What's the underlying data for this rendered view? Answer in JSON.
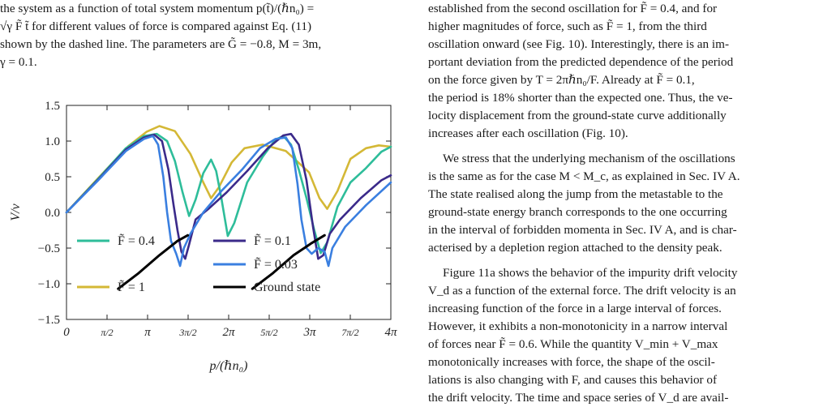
{
  "left_column": {
    "caption_lines": [
      "the system as a function of total system momentum p(t̃)/(ℏn₀) =",
      "√γ F̃ t̃  for different values of force is compared against Eq. (11)",
      "shown by the dashed line. The parameters are G̃ = −0.8, M = 3m,",
      "γ = 0.1."
    ]
  },
  "right_column": {
    "para1": [
      "established from the second oscillation for F̃ = 0.4, and for",
      "higher magnitudes of force, such as F̃ = 1, from the third",
      "oscillation onward (see Fig. 10). Interestingly, there is an im-",
      "portant deviation from the predicted dependence of the period",
      "on the force given by T = 2πℏn₀/F. Already at F̃ = 0.1,",
      "the period is 18% shorter than the expected one. Thus, the ve-",
      "locity displacement from the ground-state curve additionally",
      "increases after each oscillation (Fig. 10)."
    ],
    "para2": [
      "We stress that the underlying mechanism of the oscillations",
      "is the same as for the case M < M_c, as explained in Sec. IV A.",
      "The state realised along the jump from the metastable to the",
      "ground-state energy branch corresponds to the one occurring",
      "in the interval of forbidden momenta in Sec. IV A, and is char-",
      "acterised by a depletion region attached to the density peak."
    ],
    "para3": [
      "Figure 11a shows the behavior of the impurity drift velocity",
      "V_d as a function of the external force. The drift velocity is an",
      "increasing function of the force in a large interval of forces.",
      "However, it exhibits a non-monotonicity in a narrow interval",
      "of forces near F̃ = 0.6. While the quantity V_min + V_max",
      "monotonically increases with force, the shape of the oscil-",
      "lations is also changing with F, and causes this behavior of",
      "the drift velocity. The time and space series of V_d are avail-"
    ]
  },
  "chart_data": {
    "type": "line",
    "xlabel": "p/(ℏn₀)",
    "ylabel": "V/v",
    "xlim": [
      0,
      12.566
    ],
    "ylim": [
      -1.5,
      1.5
    ],
    "x_tick_labels": [
      "0",
      "π/2",
      "π",
      "3π/2",
      "2π",
      "5π/2",
      "3π",
      "7π/2",
      "4π"
    ],
    "y_tick_labels": [
      "−1.5",
      "−1.0",
      "−0.5",
      "0.0",
      "0.5",
      "1.0",
      "1.5"
    ],
    "y_ticks": [
      -1.5,
      -1.0,
      -0.5,
      0.0,
      0.5,
      1.0,
      1.5
    ],
    "legend": [
      "F̃ = 0.4",
      "F̃ = 0.1",
      "F̃ = 0.03",
      "F̃ = 1",
      "Ground state"
    ],
    "series": [
      {
        "name": "F̃ = 1",
        "color": "#d4b836",
        "points": [
          [
            0,
            0
          ],
          [
            1.2,
            0.47
          ],
          [
            2.4,
            0.93
          ],
          [
            3.1,
            1.13
          ],
          [
            3.6,
            1.21
          ],
          [
            4.2,
            1.14
          ],
          [
            4.8,
            0.82
          ],
          [
            5.3,
            0.42
          ],
          [
            5.6,
            0.2
          ],
          [
            5.9,
            0.35
          ],
          [
            6.4,
            0.7
          ],
          [
            6.9,
            0.9
          ],
          [
            7.6,
            0.95
          ],
          [
            8.5,
            0.86
          ],
          [
            9.4,
            0.56
          ],
          [
            9.8,
            0.2
          ],
          [
            10.1,
            0.05
          ],
          [
            10.5,
            0.3
          ],
          [
            11.0,
            0.75
          ],
          [
            11.6,
            0.9
          ],
          [
            12.1,
            0.94
          ],
          [
            12.566,
            0.92
          ]
        ]
      },
      {
        "name": "F̃ = 0.4",
        "color": "#2ebd9a",
        "points": [
          [
            0,
            0
          ],
          [
            1.2,
            0.46
          ],
          [
            2.3,
            0.9
          ],
          [
            3.0,
            1.07
          ],
          [
            3.5,
            1.1
          ],
          [
            3.9,
            1.0
          ],
          [
            4.2,
            0.72
          ],
          [
            4.5,
            0.28
          ],
          [
            4.75,
            -0.05
          ],
          [
            5.0,
            0.18
          ],
          [
            5.3,
            0.55
          ],
          [
            5.6,
            0.74
          ],
          [
            5.8,
            0.58
          ],
          [
            6.0,
            0.2
          ],
          [
            6.25,
            -0.33
          ],
          [
            6.5,
            -0.15
          ],
          [
            7.0,
            0.42
          ],
          [
            7.6,
            0.78
          ],
          [
            8.1,
            1.02
          ],
          [
            8.4,
            1.07
          ],
          [
            8.7,
            0.95
          ],
          [
            9.0,
            0.6
          ],
          [
            9.3,
            0.2
          ],
          [
            9.6,
            -0.25
          ],
          [
            9.85,
            -0.57
          ],
          [
            10.1,
            -0.42
          ],
          [
            10.5,
            0.08
          ],
          [
            11.0,
            0.42
          ],
          [
            11.6,
            0.62
          ],
          [
            12.2,
            0.85
          ],
          [
            12.566,
            0.92
          ]
        ]
      },
      {
        "name": "F̃ = 0.1",
        "color": "#3b2a8a",
        "points": [
          [
            0,
            0
          ],
          [
            1.2,
            0.45
          ],
          [
            2.3,
            0.88
          ],
          [
            3.0,
            1.05
          ],
          [
            3.4,
            1.09
          ],
          [
            3.7,
            1.0
          ],
          [
            3.95,
            0.6
          ],
          [
            4.15,
            0.1
          ],
          [
            4.3,
            -0.25
          ],
          [
            4.45,
            -0.55
          ],
          [
            4.6,
            -0.65
          ],
          [
            4.75,
            -0.45
          ],
          [
            5.0,
            -0.1
          ],
          [
            5.5,
            0.05
          ],
          [
            6.2,
            0.28
          ],
          [
            7.0,
            0.58
          ],
          [
            7.8,
            0.9
          ],
          [
            8.4,
            1.08
          ],
          [
            8.7,
            1.1
          ],
          [
            9.0,
            0.95
          ],
          [
            9.3,
            0.45
          ],
          [
            9.55,
            -0.2
          ],
          [
            9.75,
            -0.65
          ],
          [
            9.95,
            -0.6
          ],
          [
            10.2,
            -0.3
          ],
          [
            10.6,
            -0.1
          ],
          [
            11.4,
            0.2
          ],
          [
            12.2,
            0.45
          ],
          [
            12.566,
            0.52
          ]
        ]
      },
      {
        "name": "F̃ = 0.03",
        "color": "#3a7fe0",
        "points": [
          [
            0,
            0
          ],
          [
            1.2,
            0.44
          ],
          [
            2.3,
            0.86
          ],
          [
            3.0,
            1.03
          ],
          [
            3.35,
            1.07
          ],
          [
            3.55,
            0.95
          ],
          [
            3.75,
            0.5
          ],
          [
            3.9,
            0.0
          ],
          [
            4.05,
            -0.4
          ],
          [
            4.25,
            -0.58
          ],
          [
            4.4,
            -0.75
          ],
          [
            4.55,
            -0.5
          ],
          [
            4.8,
            -0.3
          ],
          [
            5.3,
            0.0
          ],
          [
            6.0,
            0.3
          ],
          [
            6.8,
            0.6
          ],
          [
            7.5,
            0.9
          ],
          [
            8.1,
            1.03
          ],
          [
            8.5,
            1.05
          ],
          [
            8.75,
            0.9
          ],
          [
            8.95,
            0.4
          ],
          [
            9.1,
            -0.1
          ],
          [
            9.3,
            -0.5
          ],
          [
            9.5,
            -0.58
          ],
          [
            9.75,
            -0.5
          ],
          [
            10.0,
            -0.55
          ],
          [
            10.15,
            -0.75
          ],
          [
            10.3,
            -0.5
          ],
          [
            10.8,
            -0.2
          ],
          [
            11.6,
            0.1
          ],
          [
            12.566,
            0.42
          ]
        ]
      },
      {
        "name": "Ground state",
        "color": "#000000",
        "points": [
          [
            2.0,
            -1.07
          ],
          [
            2.8,
            -0.85
          ],
          [
            3.6,
            -0.6
          ],
          [
            4.3,
            -0.4
          ],
          [
            4.7,
            -0.32
          ],
          [
            7.2,
            -1.07
          ],
          [
            8.0,
            -0.85
          ],
          [
            8.8,
            -0.6
          ],
          [
            9.5,
            -0.43
          ],
          [
            10.0,
            -0.32
          ]
        ],
        "segments": [
          [
            0,
            5
          ],
          [
            5,
            10
          ]
        ]
      }
    ]
  }
}
